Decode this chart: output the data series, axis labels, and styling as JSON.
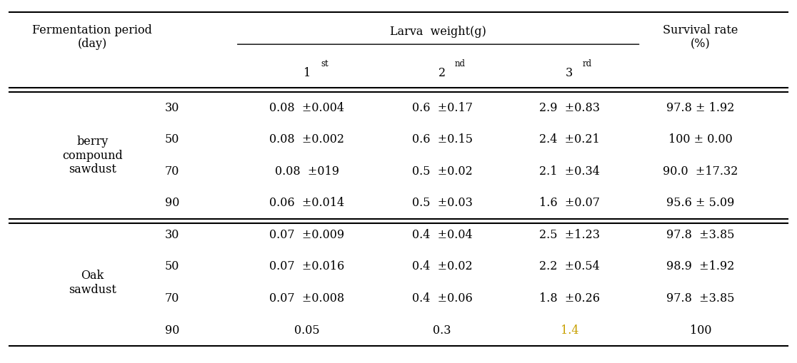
{
  "header_row1": [
    "Fermentation period\n(day)",
    "",
    "Larva weight(g)",
    "",
    "",
    "Survival rate\n(%)"
  ],
  "header_row2": [
    "",
    "",
    "1st",
    "2nd",
    "3rd",
    ""
  ],
  "group1_label": "berry\ncompound\nsawdust",
  "group2_label": "Oak\nsawdust",
  "rows": [
    {
      "group": "berry\ncompound\nsawdust",
      "day": "30",
      "w1": "0.08  ±0.004",
      "w2": "0.6  ±0.17",
      "w3": "2.9  ±0.83",
      "sr": "97.8 ± 1.92",
      "color3": "black",
      "colorsr": "black"
    },
    {
      "group": "berry\ncompound\nsawdust",
      "day": "50",
      "w1": "0.08  ±0.002",
      "w2": "0.6  ±0.15",
      "w3": "2.4  ±0.21",
      "sr": "100 ± 0.00",
      "color3": "black",
      "colorsr": "black"
    },
    {
      "group": "berry\ncompound\nsawdust",
      "day": "70",
      "w1": "0.08  ±019",
      "w2": "0.5  ±0.02",
      "w3": "2.1  ±0.34",
      "sr": "90.0  ±17.32",
      "color3": "black",
      "colorsr": "black"
    },
    {
      "group": "berry\ncompound\nsawdust",
      "day": "90",
      "w1": "0.06  ±0.014",
      "w2": "0.5  ±0.03",
      "w3": "1.6  ±0.07",
      "sr": "95.6 ± 5.09",
      "color3": "black",
      "colorsr": "black"
    },
    {
      "group": "Oak\nsawdust",
      "day": "30",
      "w1": "0.07  ±0.009",
      "w2": "0.4  ±0.04",
      "w3": "2.5  ±1.23",
      "sr": "97.8  ±3.85",
      "color3": "black",
      "colorsr": "black"
    },
    {
      "group": "Oak\nsawdust",
      "day": "50",
      "w1": "0.07  ±0.016",
      "w2": "0.4  ±0.02",
      "w3": "2.2  ±0.54",
      "sr": "98.9  ±1.92",
      "color3": "black",
      "colorsr": "black"
    },
    {
      "group": "Oak\nsawdust",
      "day": "70",
      "w1": "0.07  ±0.008",
      "w2": "0.4  ±0.06",
      "w3": "1.8  ±0.26",
      "sr": "97.8  ±3.85",
      "color3": "black",
      "colorsr": "black"
    },
    {
      "group": "Oak\nsawdust",
      "day": "90",
      "w1": "0.05",
      "w2": "0.3",
      "w3": "1.4",
      "sr": "100",
      "color3": "#c8a000",
      "colorsr": "black"
    }
  ],
  "bg_color": "white",
  "text_color": "black",
  "line_color": "black",
  "font_size": 11.5
}
